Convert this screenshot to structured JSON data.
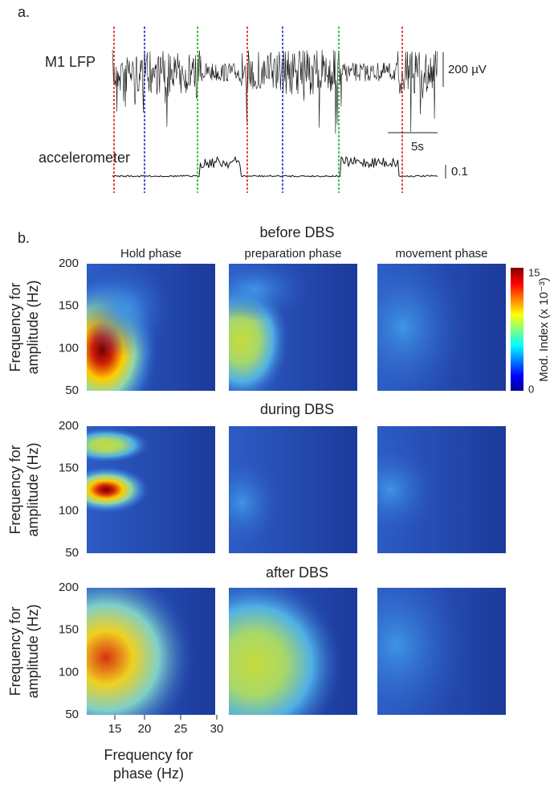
{
  "panel_a": {
    "label": "a.",
    "lfp_label": "M1 LFP",
    "lfp_scale": "200 µV",
    "time_scale": "5s",
    "accel_label": "accelerometer",
    "accel_scale": "0.1"
  },
  "panel_b": {
    "label": "b.",
    "rows": [
      {
        "title": "before DBS"
      },
      {
        "title": "during DBS"
      },
      {
        "title": "after DBS"
      }
    ],
    "columns": [
      "Hold phase",
      "preparation phase",
      "movement phase"
    ],
    "y_label": [
      "Frequency for",
      "amplitude (Hz)"
    ],
    "y_ticks": [
      "200",
      "150",
      "100",
      "50"
    ],
    "x_ticks": [
      "15",
      "20",
      "25",
      "30"
    ],
    "x_label": [
      "Frequency for",
      "phase (Hz)"
    ],
    "colorbar": {
      "max": "15",
      "min": "0",
      "label": "Mod. Index (x 10⁻³)"
    }
  }
}
